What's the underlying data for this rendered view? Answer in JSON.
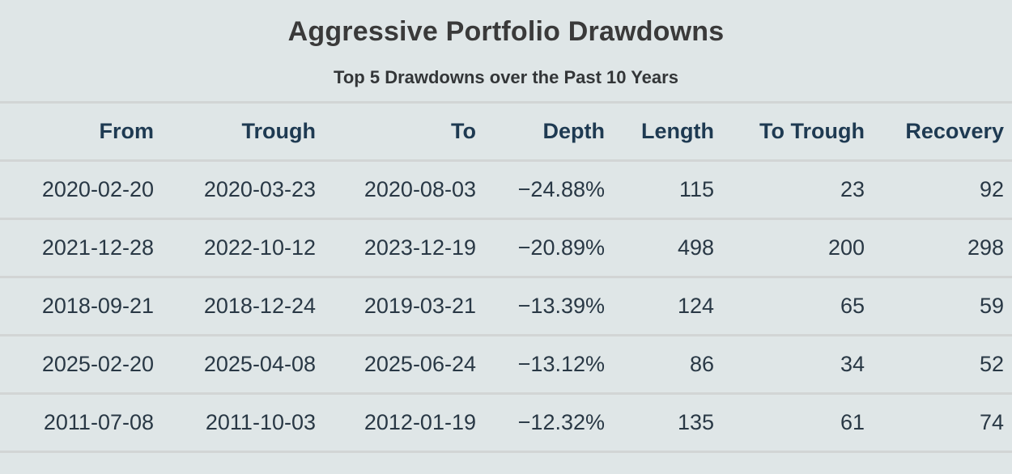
{
  "chart_data": {
    "type": "table",
    "title": "Aggressive Portfolio Drawdowns",
    "subtitle": "Top 5 Drawdowns over the Past 10 Years",
    "columns": [
      "From",
      "Trough",
      "To",
      "Depth",
      "Length",
      "To Trough",
      "Recovery"
    ],
    "rows": [
      [
        "2020-02-20",
        "2020-03-23",
        "2020-08-03",
        "−24.88%",
        "115",
        "23",
        "92"
      ],
      [
        "2021-12-28",
        "2022-10-12",
        "2023-12-19",
        "−20.89%",
        "498",
        "200",
        "298"
      ],
      [
        "2018-09-21",
        "2018-12-24",
        "2019-03-21",
        "−13.39%",
        "124",
        "65",
        "59"
      ],
      [
        "2025-02-20",
        "2025-04-08",
        "2025-06-24",
        "−13.12%",
        "86",
        "34",
        "52"
      ],
      [
        "2011-07-08",
        "2011-10-03",
        "2012-01-19",
        "−12.32%",
        "135",
        "61",
        "74"
      ]
    ],
    "layout": {
      "header_alignment": "right",
      "cell_alignment": "right",
      "grid": "horizontal-dividers-only"
    }
  },
  "colors": {
    "panel_background": "#dfe6e7",
    "title_text": "#3a3a3a",
    "subtitle_text": "#333638",
    "header_text": "#1e3a52",
    "body_text": "#293845",
    "divider": "#d2d5d5"
  }
}
